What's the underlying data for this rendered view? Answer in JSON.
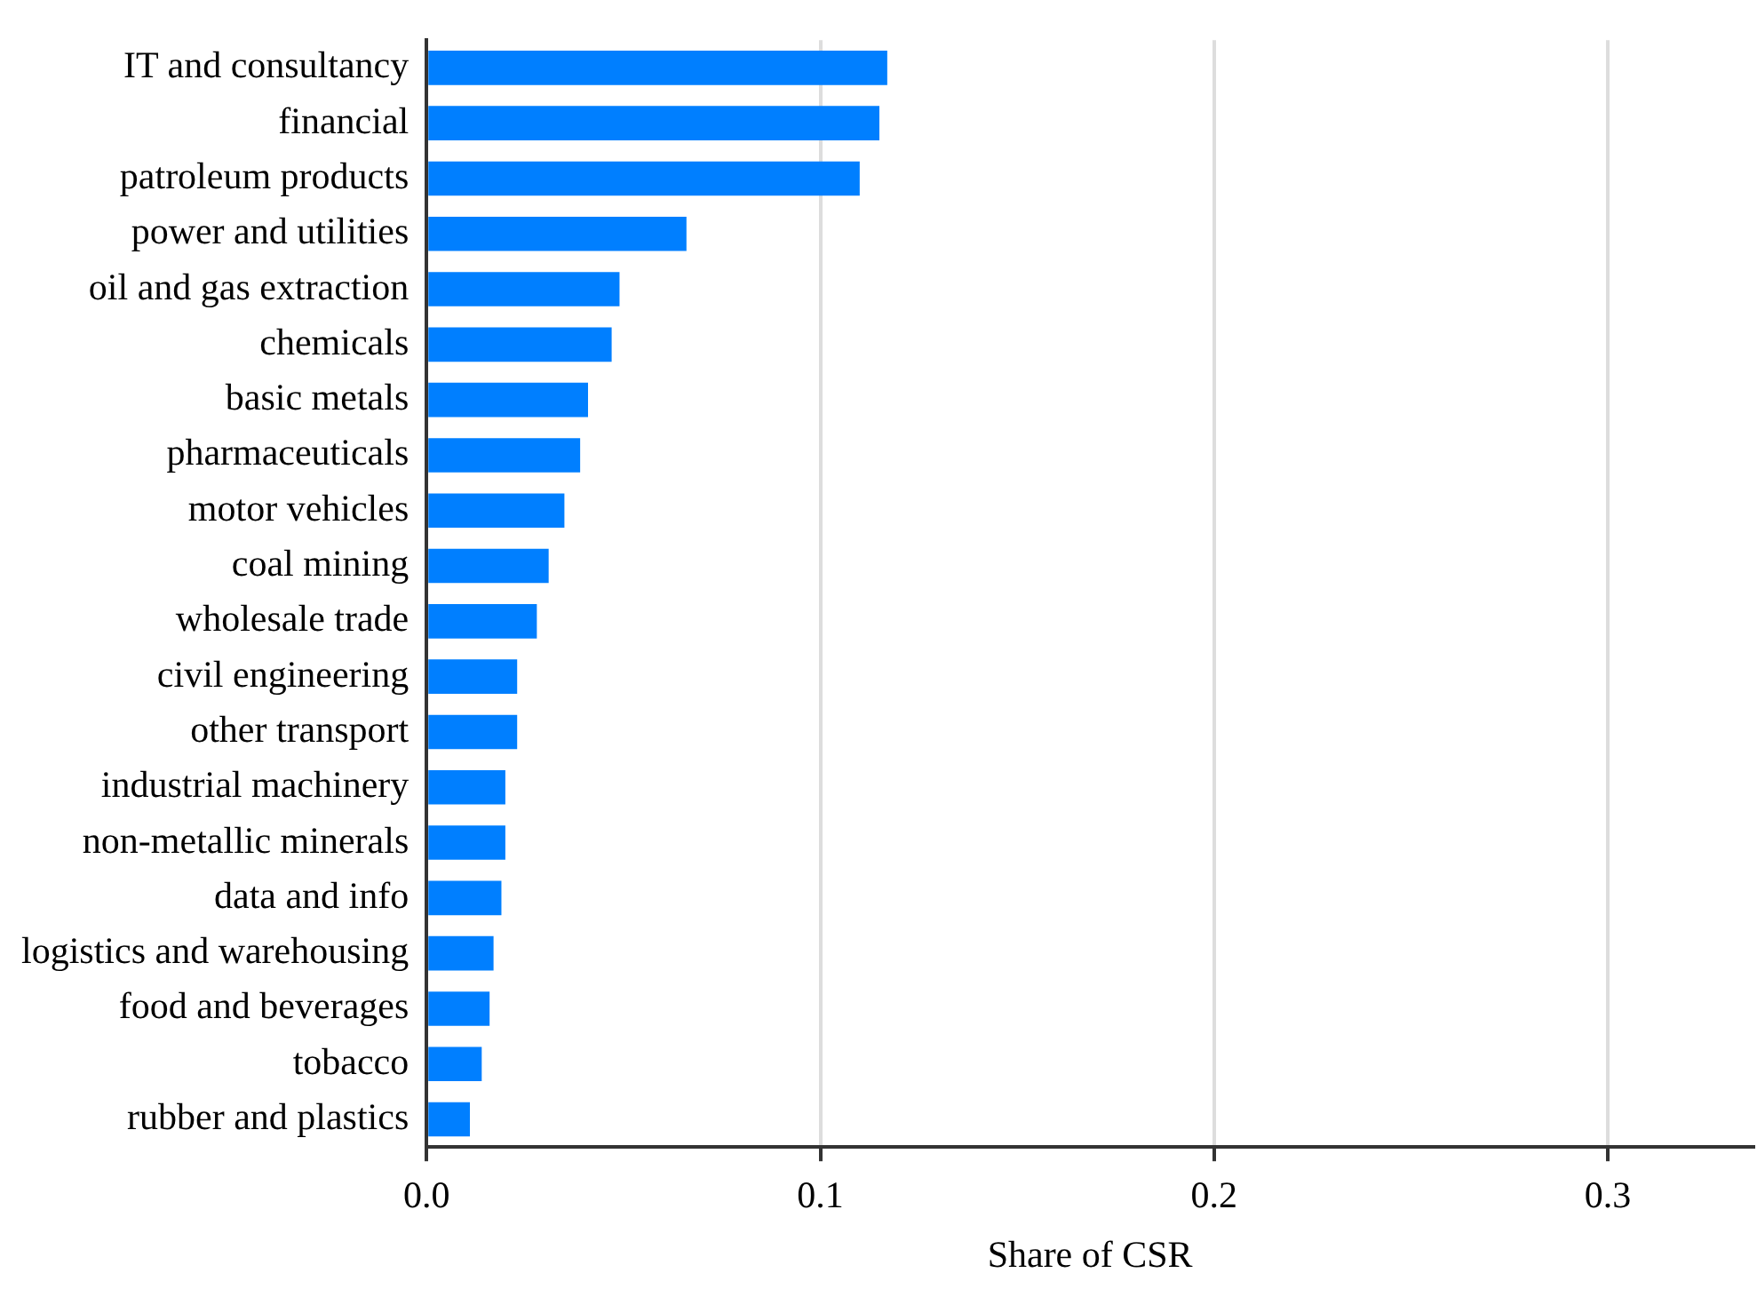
{
  "chart_data": {
    "type": "bar",
    "orientation": "horizontal",
    "xlabel": "Share of CSR",
    "categories": [
      "IT and consultancy",
      "financial",
      "patroleum products",
      "power and utilities",
      "oil and gas extraction",
      "chemicals",
      "basic metals",
      "pharmaceuticals",
      "motor vehicles",
      "coal mining",
      "wholesale trade",
      "civil engineering",
      "other transport",
      "industrial machinery",
      "non-metallic minerals",
      "data and info",
      "logistics and warehousing",
      "food and beverages",
      "tobacco",
      "rubber and plastics"
    ],
    "values": [
      0.117,
      0.115,
      0.11,
      0.066,
      0.049,
      0.047,
      0.041,
      0.039,
      0.035,
      0.031,
      0.028,
      0.023,
      0.023,
      0.02,
      0.02,
      0.019,
      0.017,
      0.016,
      0.014,
      0.011
    ],
    "color": "#007fff",
    "xlim": [
      0,
      0.337
    ],
    "xticks": [
      {
        "value": 0,
        "label": "0.0"
      },
      0.1,
      0.2,
      0.3
    ],
    "grid": "x",
    "legend": false
  }
}
